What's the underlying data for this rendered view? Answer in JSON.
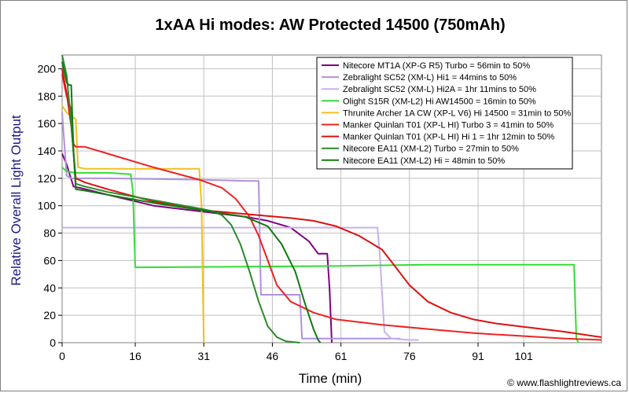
{
  "chart_data": {
    "type": "line",
    "title": "1xAA Hi modes: AW Protected 14500 (750mAh)",
    "xlabel": "Time (min)",
    "ylabel": "Relative Overall Light Output",
    "xlim": [
      0,
      118
    ],
    "ylim": [
      0,
      210
    ],
    "xticks": [
      0,
      16,
      31,
      46,
      61,
      76,
      91,
      101
    ],
    "xtick_labels": [
      "0",
      "16",
      "31",
      "46",
      "61",
      "76",
      "91",
      "101"
    ],
    "yticks": [
      0,
      20,
      40,
      60,
      80,
      100,
      120,
      140,
      160,
      180,
      200
    ],
    "grid": true,
    "legend_position": "top-right",
    "credit": "© www.flashlightreviews.ca",
    "series": [
      {
        "name": "Nitecore MT1A (XP-G R5) Turbo = 56min to 50%",
        "color": "#800080",
        "points": [
          [
            0,
            138
          ],
          [
            1,
            130
          ],
          [
            2.5,
            114
          ],
          [
            4,
            113
          ],
          [
            10,
            108
          ],
          [
            20,
            100
          ],
          [
            30,
            96
          ],
          [
            40,
            92
          ],
          [
            45,
            89
          ],
          [
            50,
            84
          ],
          [
            54,
            74
          ],
          [
            56,
            65
          ],
          [
            58,
            65
          ],
          [
            58.5,
            40
          ],
          [
            59,
            0
          ]
        ]
      },
      {
        "name": "Zebralight SC52 (XM-L) Hi1 = 44mins to 50%",
        "color": "#b090e0",
        "points": [
          [
            0,
            168
          ],
          [
            1,
            122
          ],
          [
            2,
            120
          ],
          [
            10,
            120
          ],
          [
            30,
            119
          ],
          [
            41,
            118
          ],
          [
            43,
            118
          ],
          [
            43.5,
            35
          ],
          [
            52,
            35
          ],
          [
            52.5,
            3
          ],
          [
            74,
            3
          ]
        ]
      },
      {
        "name": "Zebralight SC52 (XM-L) Hi2A = 1hr 11mins to 50%",
        "color": "#c8b0f0",
        "points": [
          [
            0,
            84
          ],
          [
            10,
            84
          ],
          [
            40,
            84
          ],
          [
            60,
            84
          ],
          [
            69,
            84
          ],
          [
            69.5,
            65
          ],
          [
            70.5,
            8
          ],
          [
            72,
            3
          ],
          [
            76,
            2
          ],
          [
            78,
            2
          ]
        ]
      },
      {
        "name": "Olight S15R (XM-L2) Hi AW14500 = 16min to 50%",
        "color": "#33dd33",
        "points": [
          [
            0,
            128
          ],
          [
            1,
            125
          ],
          [
            3,
            124
          ],
          [
            10,
            124
          ],
          [
            15,
            123
          ],
          [
            15.5,
            110
          ],
          [
            16,
            55
          ],
          [
            17,
            55
          ],
          [
            60,
            56
          ],
          [
            80,
            57
          ],
          [
            99,
            57
          ],
          [
            100,
            57
          ],
          [
            103,
            57
          ],
          [
            112,
            57
          ],
          [
            112.5,
            3
          ],
          [
            113,
            0
          ]
        ]
      },
      {
        "name": "Thrunite Archer 1A CW (XP-L V6) Hi 14500 = 31min to 50%",
        "color": "#f0c020",
        "points": [
          [
            0,
            173
          ],
          [
            1,
            168
          ],
          [
            3,
            163
          ],
          [
            3.5,
            128
          ],
          [
            5,
            127
          ],
          [
            15,
            127
          ],
          [
            25,
            127
          ],
          [
            30,
            127
          ],
          [
            30.5,
            100
          ],
          [
            31,
            0
          ]
        ]
      },
      {
        "name": "Manker Quinlan T01 (XP-L HI) Turbo 3 = 41min to 50%",
        "color": "#ee2222",
        "points": [
          [
            0,
            196
          ],
          [
            1,
            180
          ],
          [
            2,
            170
          ],
          [
            2.5,
            145
          ],
          [
            3,
            143
          ],
          [
            5,
            143
          ],
          [
            10,
            138
          ],
          [
            20,
            128
          ],
          [
            30,
            119
          ],
          [
            35,
            113
          ],
          [
            38,
            105
          ],
          [
            41,
            92
          ],
          [
            43,
            78
          ],
          [
            45,
            60
          ],
          [
            47,
            42
          ],
          [
            50,
            30
          ],
          [
            55,
            22
          ],
          [
            60,
            17
          ],
          [
            70,
            13
          ],
          [
            80,
            10
          ],
          [
            90,
            7
          ],
          [
            100,
            5
          ],
          [
            110,
            3
          ],
          [
            118,
            2
          ]
        ]
      },
      {
        "name": "Manker Quinlan T01 (XP-L HI) Hi 1 = 1hr 12min to 50%",
        "color": "#dd1111",
        "points": [
          [
            0,
            200
          ],
          [
            1,
            182
          ],
          [
            2,
            158
          ],
          [
            3,
            120
          ],
          [
            5,
            117
          ],
          [
            10,
            112
          ],
          [
            20,
            103
          ],
          [
            30,
            97
          ],
          [
            40,
            94
          ],
          [
            50,
            91
          ],
          [
            55,
            89
          ],
          [
            60,
            85
          ],
          [
            65,
            78
          ],
          [
            70,
            68
          ],
          [
            73,
            55
          ],
          [
            76,
            42
          ],
          [
            80,
            30
          ],
          [
            85,
            22
          ],
          [
            90,
            17
          ],
          [
            95,
            14
          ],
          [
            100,
            12
          ],
          [
            105,
            10
          ],
          [
            110,
            8
          ],
          [
            118,
            4
          ]
        ]
      },
      {
        "name": "Nitecore EA11 (XM-L2) Turbo = 27min to 50%",
        "color": "#2a8a2a",
        "points": [
          [
            0,
            210
          ],
          [
            1,
            195
          ],
          [
            2,
            160
          ],
          [
            3,
            116
          ],
          [
            5,
            114
          ],
          [
            10,
            110
          ],
          [
            20,
            104
          ],
          [
            30,
            98
          ],
          [
            33,
            96
          ],
          [
            35,
            93
          ],
          [
            37,
            86
          ],
          [
            39,
            72
          ],
          [
            41,
            52
          ],
          [
            43,
            30
          ],
          [
            45,
            12
          ],
          [
            47,
            4
          ],
          [
            49,
            1
          ],
          [
            52,
            0
          ]
        ]
      },
      {
        "name": "Nitecore EA11 (XM-L2) Hi = 48min to 50%",
        "color": "#117a11",
        "points": [
          [
            0,
            205
          ],
          [
            1,
            190
          ],
          [
            1.5,
            188
          ],
          [
            2,
            188
          ],
          [
            2.5,
            140
          ],
          [
            3,
            112
          ],
          [
            5,
            111
          ],
          [
            10,
            108
          ],
          [
            20,
            102
          ],
          [
            30,
            97
          ],
          [
            40,
            92
          ],
          [
            45,
            85
          ],
          [
            48,
            72
          ],
          [
            51,
            52
          ],
          [
            53,
            30
          ],
          [
            55,
            10
          ],
          [
            56,
            2
          ],
          [
            56.5,
            0
          ]
        ]
      }
    ]
  }
}
